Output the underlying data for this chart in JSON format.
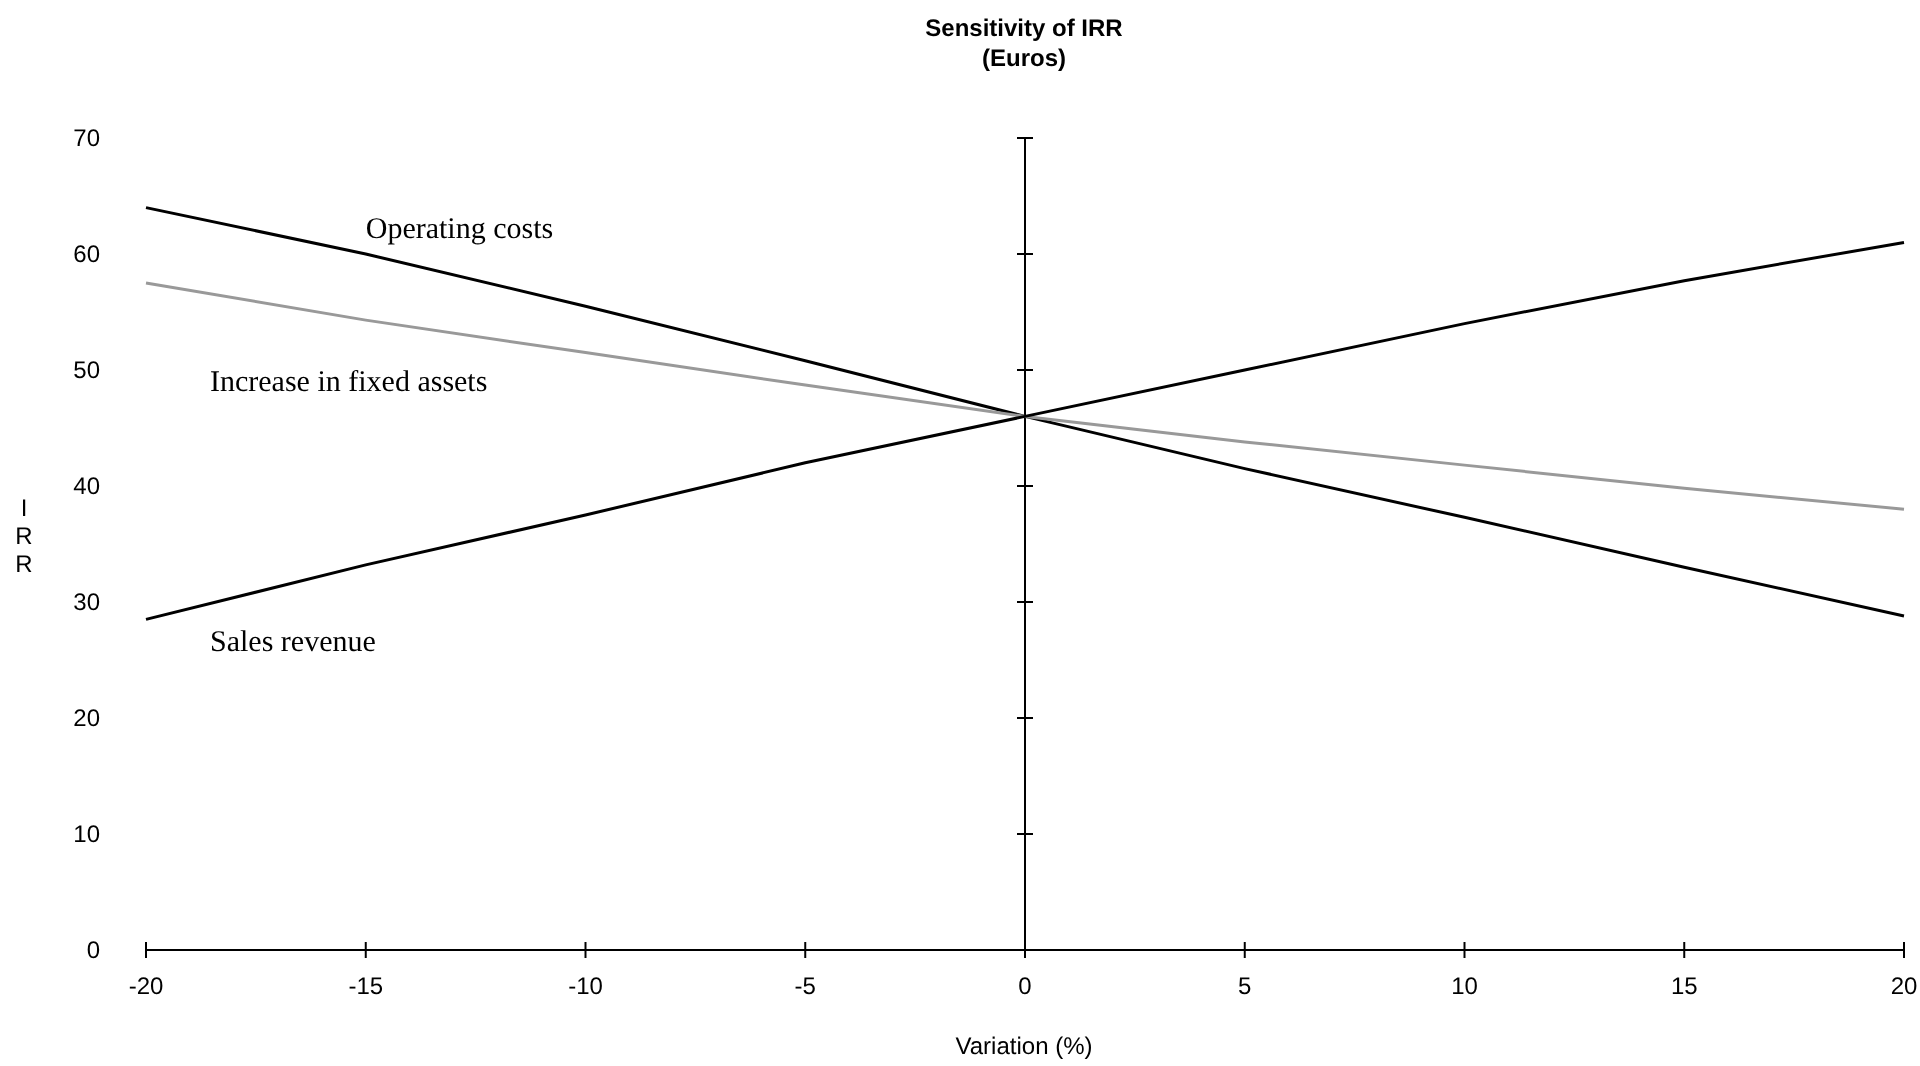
{
  "chart_data": {
    "type": "line",
    "title": "Sensitivity of IRR",
    "subtitle": "(Euros)",
    "xlabel": "Variation (%)",
    "ylabel": "IRR",
    "x": [
      -20,
      -15,
      -10,
      -5,
      0,
      5,
      10,
      15,
      20
    ],
    "series": [
      {
        "name": "Operating costs",
        "color": "#000000",
        "values": [
          64,
          60,
          55.5,
          50.8,
          46,
          41.5,
          37.3,
          33,
          28.8
        ]
      },
      {
        "name": "Increase in fixed assets",
        "color": "#999999",
        "values": [
          57.5,
          54.3,
          51.5,
          48.7,
          46,
          43.8,
          41.8,
          39.8,
          38
        ]
      },
      {
        "name": "Sales revenue",
        "color": "#000000",
        "values": [
          28.5,
          33.2,
          37.5,
          42,
          46,
          50,
          54,
          57.7,
          61
        ]
      }
    ],
    "xlim": [
      -20,
      20
    ],
    "ylim": [
      0,
      70
    ],
    "xticks": [
      -20,
      -15,
      -10,
      -5,
      0,
      5,
      10,
      15,
      20
    ],
    "yticks": [
      0,
      10,
      20,
      30,
      40,
      50,
      60,
      70
    ],
    "marker": "none",
    "line_style": "solid"
  }
}
